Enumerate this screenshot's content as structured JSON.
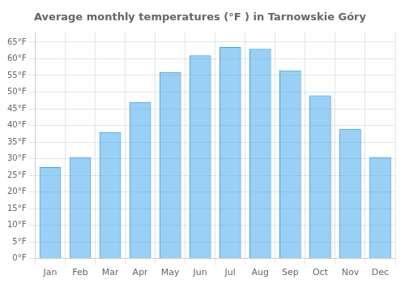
{
  "chart_data": {
    "type": "bar",
    "title": "Average monthly temperatures (°F ) in Tarnowskie Góry",
    "categories": [
      "Jan",
      "Feb",
      "Mar",
      "Apr",
      "May",
      "Jun",
      "Jul",
      "Aug",
      "Sep",
      "Oct",
      "Nov",
      "Dec"
    ],
    "values": [
      27.5,
      30.5,
      38.0,
      47.0,
      56.0,
      61.0,
      63.5,
      63.0,
      56.5,
      49.0,
      39.0,
      30.5
    ],
    "ylim": [
      0,
      68
    ],
    "yticks": [
      {
        "value": 0,
        "label": "0°F"
      },
      {
        "value": 5,
        "label": "5°F"
      },
      {
        "value": 10,
        "label": "10°F"
      },
      {
        "value": 15,
        "label": "15°F"
      },
      {
        "value": 20,
        "label": "20°F"
      },
      {
        "value": 25,
        "label": "25°F"
      },
      {
        "value": 30,
        "label": "30°F"
      },
      {
        "value": 35,
        "label": "35°F"
      },
      {
        "value": 40,
        "label": "40°F"
      },
      {
        "value": 45,
        "label": "45°F"
      },
      {
        "value": 50,
        "label": "50°F"
      },
      {
        "value": 55,
        "label": "55°F"
      },
      {
        "value": 60,
        "label": "60°F"
      },
      {
        "value": 65,
        "label": "65°F"
      }
    ],
    "grid": true
  }
}
